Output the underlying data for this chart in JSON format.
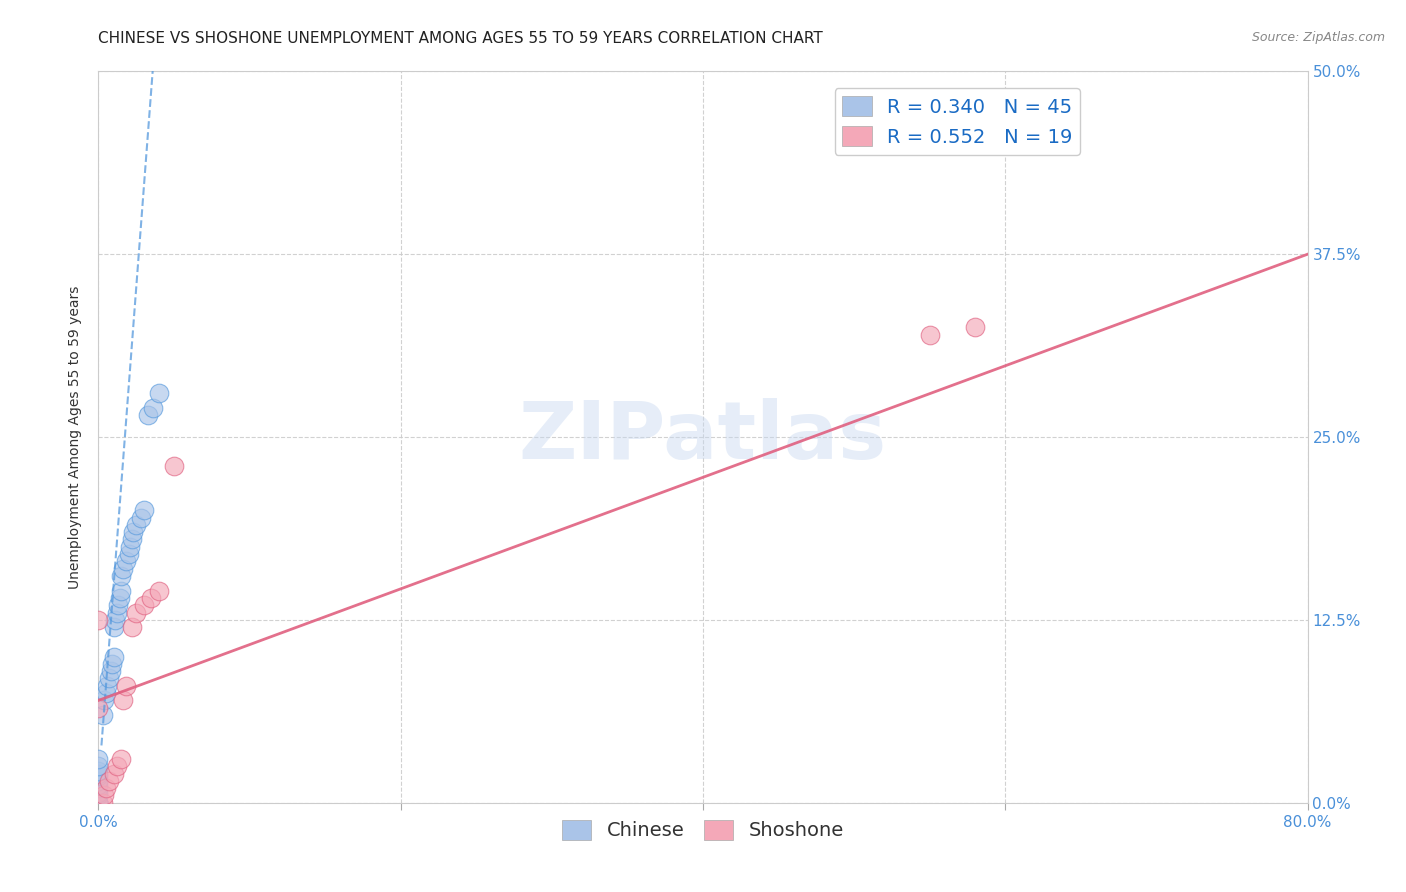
{
  "title": "CHINESE VS SHOSHONE UNEMPLOYMENT AMONG AGES 55 TO 59 YEARS CORRELATION CHART",
  "source": "Source: ZipAtlas.com",
  "ylabel": "Unemployment Among Ages 55 to 59 years",
  "xlim": [
    0.0,
    0.8
  ],
  "ylim": [
    0.0,
    0.5
  ],
  "xticks": [
    0.0,
    0.2,
    0.4,
    0.6,
    0.8
  ],
  "xticklabels": [
    "0.0%",
    "",
    "",
    "",
    "80.0%"
  ],
  "yticks": [
    0.0,
    0.125,
    0.25,
    0.375,
    0.5
  ],
  "yticklabels": [
    "0.0%",
    "12.5%",
    "25.0%",
    "37.5%",
    "50.0%"
  ],
  "background_color": "#ffffff",
  "grid_color": "#cccccc",
  "watermark": "ZIPatlas",
  "legend_r_chinese": "R = 0.340",
  "legend_n_chinese": "N = 45",
  "legend_r_shoshone": "R = 0.552",
  "legend_n_shoshone": "N = 19",
  "chinese_color": "#aac4e8",
  "shoshone_color": "#f4a8b8",
  "chinese_line_color": "#5599dd",
  "shoshone_line_color": "#e06080",
  "chinese_scatter_x": [
    0.0,
    0.0,
    0.0,
    0.0,
    0.0,
    0.0,
    0.0,
    0.0,
    0.0,
    0.0,
    0.0,
    0.0,
    0.0,
    0.0,
    0.0,
    0.0,
    0.0,
    0.0,
    0.003,
    0.004,
    0.005,
    0.006,
    0.007,
    0.008,
    0.009,
    0.01,
    0.01,
    0.011,
    0.012,
    0.013,
    0.014,
    0.015,
    0.015,
    0.016,
    0.018,
    0.02,
    0.021,
    0.022,
    0.023,
    0.025,
    0.028,
    0.03,
    0.033,
    0.036,
    0.04
  ],
  "chinese_scatter_y": [
    0.0,
    0.0,
    0.0,
    0.0,
    0.0,
    0.0,
    0.0,
    0.0,
    0.005,
    0.007,
    0.01,
    0.012,
    0.015,
    0.018,
    0.02,
    0.022,
    0.025,
    0.03,
    0.06,
    0.07,
    0.075,
    0.08,
    0.085,
    0.09,
    0.095,
    0.1,
    0.12,
    0.125,
    0.13,
    0.135,
    0.14,
    0.145,
    0.155,
    0.16,
    0.165,
    0.17,
    0.175,
    0.18,
    0.185,
    0.19,
    0.195,
    0.2,
    0.265,
    0.27,
    0.28
  ],
  "shoshone_scatter_x": [
    0.0,
    0.0,
    0.003,
    0.004,
    0.005,
    0.007,
    0.01,
    0.012,
    0.015,
    0.016,
    0.018,
    0.022,
    0.025,
    0.03,
    0.035,
    0.04,
    0.05,
    0.55,
    0.58
  ],
  "shoshone_scatter_y": [
    0.125,
    0.065,
    0.0,
    0.005,
    0.01,
    0.015,
    0.02,
    0.025,
    0.03,
    0.07,
    0.08,
    0.12,
    0.13,
    0.135,
    0.14,
    0.145,
    0.23,
    0.32,
    0.325
  ],
  "title_fontsize": 11,
  "axis_label_fontsize": 10,
  "tick_fontsize": 11,
  "legend_fontsize": 14,
  "source_fontsize": 9,
  "tick_color": "#4a90d9"
}
